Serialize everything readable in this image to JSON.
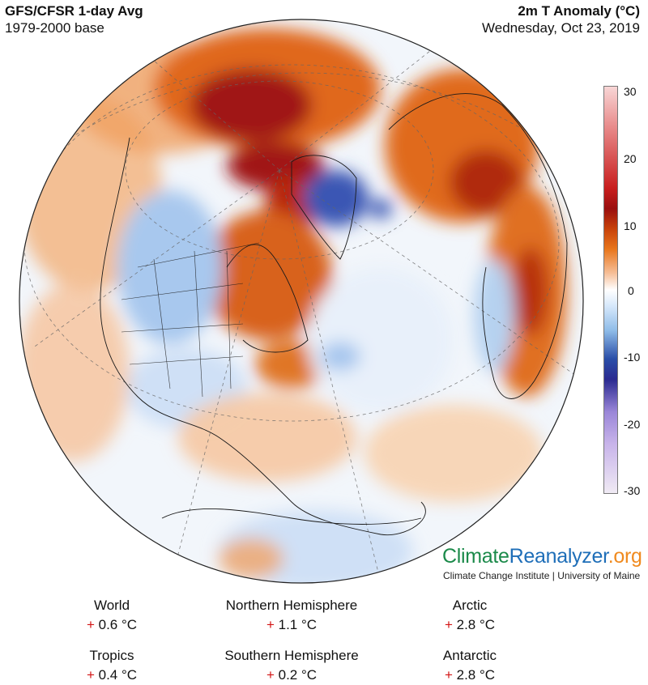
{
  "header": {
    "title": "GFS/CFSR 1-day Avg",
    "base": "1979-2000 base",
    "variable": "2m T Anomaly (°C)",
    "date": "Wednesday, Oct 23, 2019"
  },
  "colorbar": {
    "ticks": [
      "30",
      "20",
      "10",
      "0",
      "-10",
      "-20",
      "-30"
    ],
    "colors": [
      "#f8d6d6",
      "#c81e1e",
      "#9a0f0f",
      "#e8761c",
      "#ffffff",
      "#8fbce8",
      "#2a2a90",
      "#c8b4ea"
    ]
  },
  "logo": {
    "part1": "Climate",
    "part2": "Reanalyzer",
    "part3": ".org",
    "institute": "Climate Change Institute | University of Maine"
  },
  "stats": [
    {
      "label": "World",
      "sign": "+",
      "value": "0.6 °C"
    },
    {
      "label": "Northern Hemisphere",
      "sign": "+",
      "value": "1.1 °C"
    },
    {
      "label": "Arctic",
      "sign": "+",
      "value": "2.8 °C"
    },
    {
      "label": "Tropics",
      "sign": "+",
      "value": "0.4 °C"
    },
    {
      "label": "Southern Hemisphere",
      "sign": "+",
      "value": "0.2 °C"
    },
    {
      "label": "Antarctic",
      "sign": "+",
      "value": "2.8 °C"
    }
  ]
}
